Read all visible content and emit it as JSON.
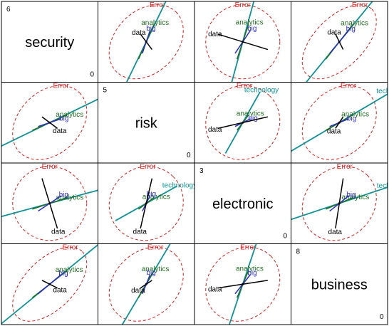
{
  "chart_data": {
    "type": "biplot-scatterplot-matrix",
    "dimension_order": [
      "security",
      "risk",
      "electronic",
      "business"
    ],
    "diagonal": [
      {
        "name": "security",
        "max": "6",
        "min": "0"
      },
      {
        "name": "risk",
        "max": "5",
        "min": "0"
      },
      {
        "name": "electronic",
        "max": "3",
        "min": "0"
      },
      {
        "name": "business",
        "max": "8",
        "min": "0"
      }
    ],
    "ellipse_label": "Error",
    "variables": [
      {
        "name": "technology",
        "color": "#0f9396"
      },
      {
        "name": "analytics",
        "color": "#1f6d1f"
      },
      {
        "name": "big",
        "color": "#2d2dc8"
      },
      {
        "name": "data",
        "color": "#000000"
      }
    ],
    "ellipse_color": "#d42020",
    "loadings": {
      "technology": [
        3.3,
        1.6,
        0.9,
        2.7
      ],
      "analytics": [
        0.9,
        0.4,
        0.3,
        0.7
      ],
      "big": [
        0.6,
        0.2,
        0.4,
        0.5
      ],
      "data": [
        0.4,
        -0.3,
        -1.3,
        -0.2
      ]
    },
    "error_cov": [
      [
        1.0,
        0.3,
        0.0,
        0.55
      ],
      [
        0.3,
        1.0,
        0.05,
        0.25
      ],
      [
        0.0,
        0.05,
        1.0,
        0.15
      ],
      [
        0.55,
        0.25,
        0.15,
        1.0
      ]
    ]
  }
}
